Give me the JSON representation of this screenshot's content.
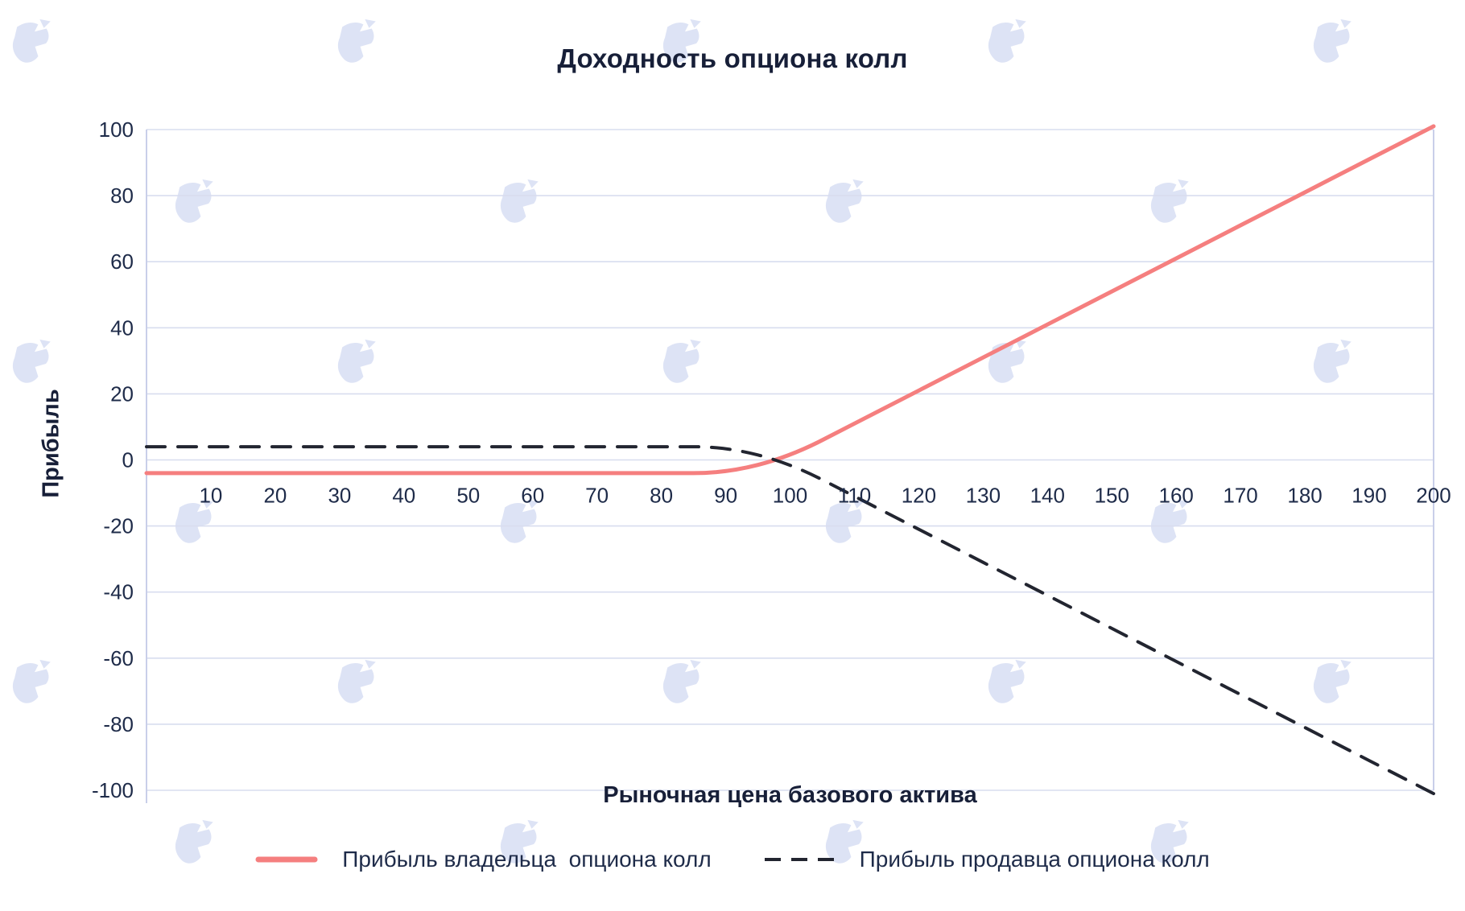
{
  "page": {
    "background_color": "#ffffff"
  },
  "watermark": {
    "name": "forklog-logo",
    "color": "#dde3f5"
  },
  "chart_data": {
    "type": "line",
    "title": "Доходность опциона колл",
    "xlabel": "Рыночная цена базового актива",
    "ylabel": "Прибыль",
    "xlim": [
      0,
      200
    ],
    "ylim": [
      -100,
      100
    ],
    "x_ticks": [
      10,
      20,
      30,
      40,
      50,
      60,
      70,
      80,
      90,
      100,
      110,
      120,
      130,
      140,
      150,
      160,
      170,
      180,
      190,
      200
    ],
    "y_ticks": [
      100,
      80,
      60,
      40,
      20,
      0,
      -20,
      -40,
      -60,
      -80,
      -100
    ],
    "grid": "horizontal-only",
    "legend_position": "bottom-center",
    "colors": {
      "grid": "#d8ddef",
      "axis": "#c9cfe9",
      "text": "#1e2b49",
      "title": "#171f38"
    },
    "x": [
      0,
      10,
      20,
      30,
      40,
      50,
      60,
      70,
      80,
      90,
      100,
      110,
      120,
      130,
      140,
      150,
      160,
      170,
      180,
      190,
      200
    ],
    "series": [
      {
        "id": "owner",
        "name": "Прибыль владельца  опциона колл",
        "color": "#f57f7f",
        "style": "solid",
        "values": [
          -4,
          -4,
          -4,
          -4,
          -4,
          -4,
          -4,
          -4,
          -4,
          -4,
          1,
          11,
          21,
          31,
          41,
          51,
          61,
          71,
          81,
          91,
          101
        ]
      },
      {
        "id": "seller",
        "name": "Прибыль продавца опциона колл",
        "color": "#222530",
        "style": "dashed",
        "values": [
          4,
          4,
          4,
          4,
          4,
          4,
          4,
          4,
          4,
          4,
          -1,
          -11,
          -21,
          -31,
          -41,
          -51,
          -61,
          -71,
          -81,
          -91,
          -101
        ]
      }
    ]
  }
}
